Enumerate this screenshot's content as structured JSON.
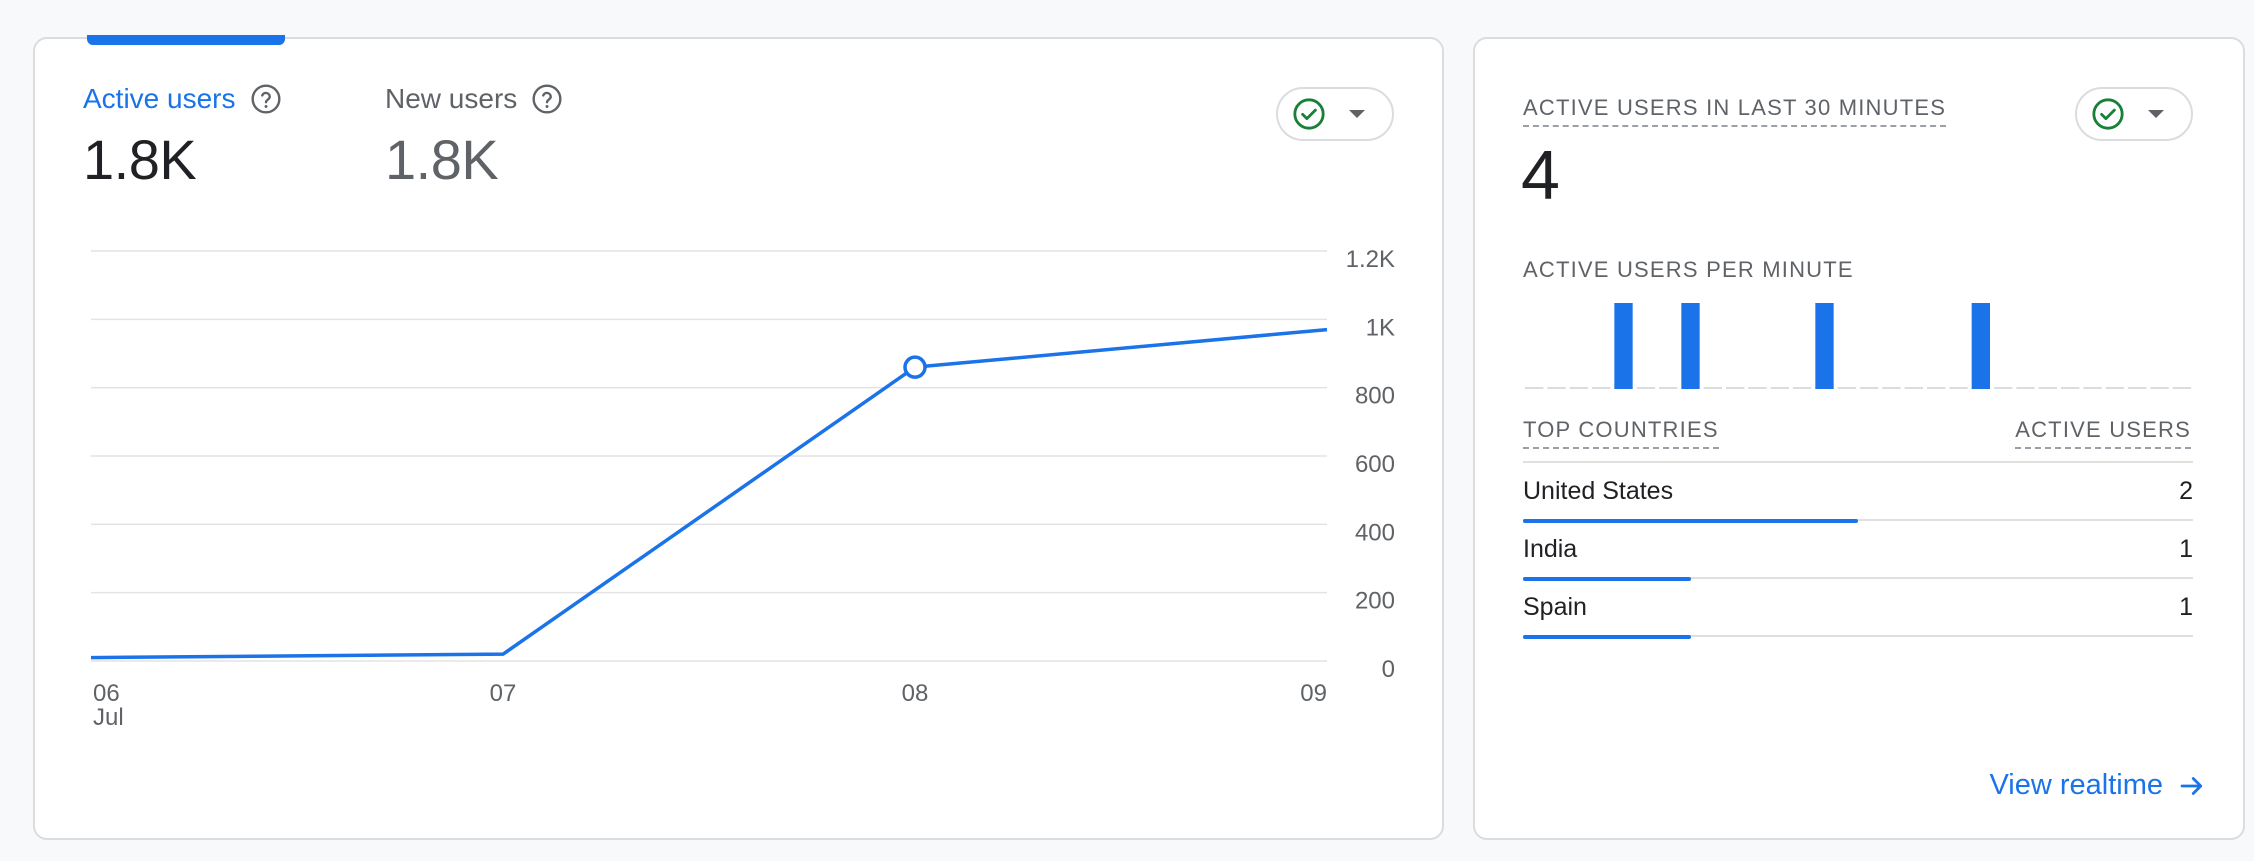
{
  "main_card": {
    "metrics": [
      {
        "label": "Active users",
        "value": "1.8K",
        "active": true
      },
      {
        "label": "New users",
        "value": "1.8K",
        "active": false
      }
    ],
    "colors": {
      "accent": "#1a73e8",
      "check": "#188038"
    },
    "chart_data": {
      "type": "line",
      "title": "",
      "xlabel": "",
      "ylabel": "",
      "x": [
        "06",
        "07",
        "08",
        "09"
      ],
      "x_sub_label": "Jul",
      "y_ticks": [
        "0",
        "200",
        "400",
        "600",
        "800",
        "1K",
        "1.2K"
      ],
      "ylim": [
        0,
        1200
      ],
      "series": [
        {
          "values": [
            10,
            20,
            860,
            970
          ],
          "highlight_index": 2
        }
      ],
      "grid": true,
      "y_axis_side": "right"
    }
  },
  "realtime_card": {
    "heading": "ACTIVE USERS IN LAST 30 MINUTES",
    "count": "4",
    "per_minute_heading": "ACTIVE USERS PER MINUTE",
    "per_minute": [
      0,
      0,
      0,
      0,
      1,
      0,
      0,
      1,
      0,
      0,
      0,
      0,
      0,
      1,
      0,
      0,
      0,
      0,
      0,
      0,
      1,
      0,
      0,
      0,
      0,
      0,
      0,
      0,
      0,
      0
    ],
    "table_headers": {
      "country": "TOP COUNTRIES",
      "users": "ACTIVE USERS"
    },
    "countries": [
      {
        "name": "United States",
        "value": "2",
        "share": 0.5
      },
      {
        "name": "India",
        "value": "1",
        "share": 0.25
      },
      {
        "name": "Spain",
        "value": "1",
        "share": 0.25
      }
    ],
    "link_label": "View realtime"
  }
}
